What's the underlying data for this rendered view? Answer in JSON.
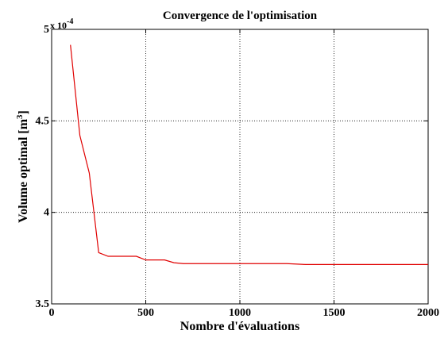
{
  "chart_data": {
    "type": "line",
    "title": "Convergence de l'optimisation",
    "xlabel": "Nombre d'évaluations",
    "ylabel": {
      "text": "Volume optimal [m",
      "sup": "3",
      "end": "]"
    },
    "multiplier": {
      "base": "x 10",
      "exponent": "-4"
    },
    "x": [
      100,
      150,
      200,
      250,
      300,
      450,
      500,
      600,
      650,
      700,
      1250,
      1350,
      2000
    ],
    "series": [
      {
        "color": "#e00000",
        "values": [
          4.915,
          4.42,
          4.215,
          3.78,
          3.76,
          3.76,
          3.74,
          3.74,
          3.725,
          3.72,
          3.72,
          3.715,
          3.715
        ]
      }
    ],
    "xlim": [
      0,
      2000
    ],
    "xticks": [
      0,
      500,
      1000,
      1500,
      2000
    ],
    "ylim": [
      3.5,
      5
    ],
    "yticks": [
      3.5,
      4,
      4.5,
      5
    ],
    "grid": true
  }
}
